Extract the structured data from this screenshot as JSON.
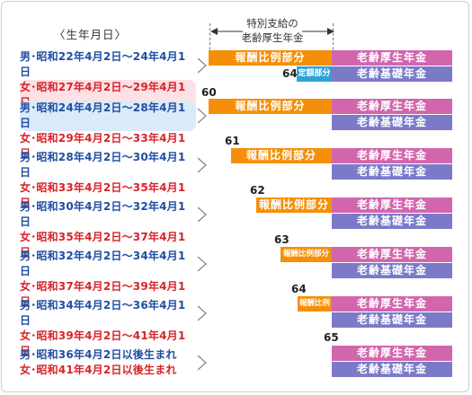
{
  "header": {
    "birth_label": "〈生年月日〉",
    "special_line1": "特別支給の",
    "special_line2": "老齢厚生年金"
  },
  "pension": {
    "remuneration": "報酬比例部分",
    "remuneration_short": "報酬比例",
    "fixed": "定額部分",
    "old_age_employee": "老齢厚生年金",
    "old_age_basic": "老齢基礎年金"
  },
  "rows": [
    {
      "male": "男･昭和22年4月2日～24年4月1日",
      "female": "女･昭和27年4月2日～29年4月1日",
      "age": "64"
    },
    {
      "male": "男･昭和24年4月2日～28年4月1日",
      "female": "女･昭和29年4月2日～33年4月1日",
      "age": "60"
    },
    {
      "male": "男･昭和28年4月2日～30年4月1日",
      "female": "女･昭和33年4月2日～35年4月1日",
      "age": "61"
    },
    {
      "male": "男･昭和30年4月2日～32年4月1日",
      "female": "女･昭和35年4月2日～37年4月1日",
      "age": "62"
    },
    {
      "male": "男･昭和32年4月2日～34年4月1日",
      "female": "女･昭和37年4月2日～39年4月1日",
      "age": "63"
    },
    {
      "male": "男･昭和34年4月2日～36年4月1日",
      "female": "女･昭和39年4月2日～41年4月1日",
      "age": "64"
    },
    {
      "male": "男･昭和36年4月2日以後生まれ",
      "female": "女･昭和41年4月2日以後生まれ",
      "age": "65"
    }
  ]
}
